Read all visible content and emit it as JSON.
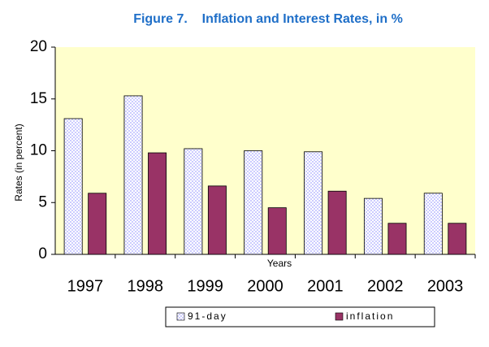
{
  "chart_data": {
    "type": "bar",
    "title": "Figure 7.    Inflation and Interest Rates, in %",
    "x_label": "Years",
    "y_label": "Rates (in percent)",
    "categories": [
      "1997",
      "1998",
      "1999",
      "2000",
      "2001",
      "2002",
      "2003"
    ],
    "series": [
      {
        "name": "91-day",
        "color": "#ccccff",
        "values": [
          13.1,
          15.3,
          10.2,
          10.0,
          9.9,
          5.4,
          5.9
        ]
      },
      {
        "name": "inflation",
        "color": "#993366",
        "values": [
          5.9,
          9.8,
          6.6,
          4.5,
          6.1,
          3.0,
          3.0
        ]
      }
    ],
    "ylim": [
      0,
      20
    ],
    "yticks": [
      0,
      5,
      10,
      15,
      20
    ],
    "grid": false,
    "legend": "bottom"
  }
}
